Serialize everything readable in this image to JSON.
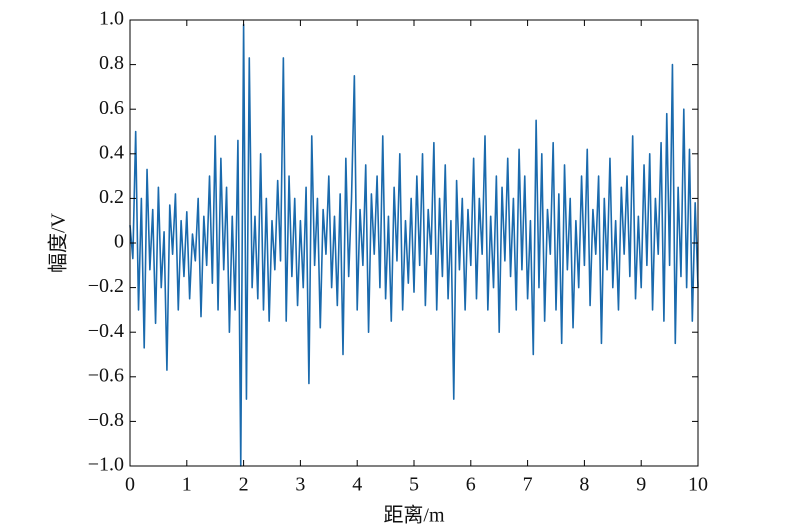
{
  "chart_data": {
    "type": "line",
    "xlabel": "距离/m",
    "ylabel": "幅度/V",
    "x": [
      0,
      0.05,
      0.1,
      0.15,
      0.2,
      0.25,
      0.3,
      0.35,
      0.4,
      0.45,
      0.5,
      0.55,
      0.6,
      0.65,
      0.7,
      0.75,
      0.8,
      0.85,
      0.9,
      0.95,
      1,
      1.05,
      1.1,
      1.15,
      1.2,
      1.25,
      1.3,
      1.35,
      1.4,
      1.45,
      1.5,
      1.55,
      1.6,
      1.65,
      1.7,
      1.75,
      1.8,
      1.85,
      1.9,
      1.95,
      2,
      2.05,
      2.1,
      2.15,
      2.2,
      2.25,
      2.3,
      2.35,
      2.4,
      2.45,
      2.5,
      2.55,
      2.6,
      2.65,
      2.7,
      2.75,
      2.8,
      2.85,
      2.9,
      2.95,
      3,
      3.05,
      3.1,
      3.15,
      3.2,
      3.25,
      3.3,
      3.35,
      3.4,
      3.45,
      3.5,
      3.55,
      3.6,
      3.65,
      3.7,
      3.75,
      3.8,
      3.85,
      3.9,
      3.95,
      4,
      4.05,
      4.1,
      4.15,
      4.2,
      4.25,
      4.3,
      4.35,
      4.4,
      4.45,
      4.5,
      4.55,
      4.6,
      4.65,
      4.7,
      4.75,
      4.8,
      4.85,
      4.9,
      4.95,
      5,
      5.05,
      5.1,
      5.15,
      5.2,
      5.25,
      5.3,
      5.35,
      5.4,
      5.45,
      5.5,
      5.55,
      5.6,
      5.65,
      5.7,
      5.75,
      5.8,
      5.85,
      5.9,
      5.95,
      6,
      6.05,
      6.1,
      6.15,
      6.2,
      6.25,
      6.3,
      6.35,
      6.4,
      6.45,
      6.5,
      6.55,
      6.6,
      6.65,
      6.7,
      6.75,
      6.8,
      6.85,
      6.9,
      6.95,
      7,
      7.05,
      7.1,
      7.15,
      7.2,
      7.25,
      7.3,
      7.35,
      7.4,
      7.45,
      7.5,
      7.55,
      7.6,
      7.65,
      7.7,
      7.75,
      7.8,
      7.85,
      7.9,
      7.95,
      8,
      8.05,
      8.1,
      8.15,
      8.2,
      8.25,
      8.3,
      8.35,
      8.4,
      8.45,
      8.5,
      8.55,
      8.6,
      8.65,
      8.7,
      8.75,
      8.8,
      8.85,
      8.9,
      8.95,
      9,
      9.05,
      9.1,
      9.15,
      9.2,
      9.25,
      9.3,
      9.35,
      9.4,
      9.45,
      9.5,
      9.55,
      9.6,
      9.65,
      9.7,
      9.75,
      9.8,
      9.85,
      9.9,
      9.95,
      10
    ],
    "series": [
      {
        "color": "#1a6aad",
        "values": [
          0.08,
          -0.07,
          0.5,
          -0.3,
          0.2,
          -0.47,
          0.33,
          -0.12,
          0.15,
          -0.36,
          0.25,
          -0.2,
          0.05,
          -0.57,
          0.17,
          -0.05,
          0.22,
          -0.3,
          0.1,
          -0.15,
          0.14,
          -0.25,
          0.04,
          -0.08,
          0.2,
          -0.33,
          0.12,
          -0.1,
          0.3,
          -0.18,
          0.48,
          -0.3,
          0.38,
          -0.12,
          0.25,
          -0.4,
          0.12,
          -0.3,
          0.46,
          -1.0,
          0.98,
          -0.7,
          0.83,
          -0.2,
          0.12,
          -0.25,
          0.4,
          -0.3,
          0.2,
          -0.35,
          0.1,
          -0.12,
          0.28,
          -0.08,
          0.83,
          -0.35,
          0.3,
          -0.15,
          0.2,
          -0.28,
          0.1,
          -0.2,
          0.25,
          -0.63,
          0.48,
          -0.1,
          0.2,
          -0.38,
          0.15,
          -0.05,
          0.3,
          -0.2,
          0.12,
          -0.28,
          0.22,
          -0.5,
          0.38,
          -0.15,
          0.2,
          0.75,
          -0.3,
          0.15,
          -0.1,
          0.35,
          -0.4,
          0.22,
          -0.05,
          0.3,
          -0.2,
          0.48,
          -0.25,
          0.12,
          -0.35,
          0.25,
          -0.08,
          0.4,
          -0.3,
          0.1,
          -0.18,
          0.2,
          -0.22,
          0.3,
          -0.1,
          0.4,
          -0.28,
          0.15,
          -0.05,
          0.45,
          -0.3,
          0.2,
          -0.15,
          0.35,
          -0.25,
          0.1,
          -0.7,
          0.28,
          -0.12,
          0.2,
          -0.3,
          0.15,
          -0.1,
          0.38,
          -0.25,
          0.2,
          -0.05,
          0.48,
          -0.3,
          0.12,
          -0.2,
          0.3,
          -0.4,
          0.25,
          -0.08,
          0.38,
          -0.15,
          0.2,
          -0.3,
          0.42,
          -0.12,
          0.3,
          -0.25,
          0.1,
          -0.5,
          0.55,
          -0.2,
          0.4,
          -0.35,
          0.15,
          -0.05,
          0.45,
          -0.3,
          0.22,
          -0.45,
          0.35,
          -0.12,
          0.2,
          -0.38,
          0.1,
          -0.2,
          0.3,
          -0.1,
          0.42,
          -0.28,
          0.15,
          -0.05,
          0.3,
          -0.45,
          0.2,
          -0.12,
          0.38,
          -0.2,
          0.1,
          -0.3,
          0.25,
          -0.05,
          0.3,
          -0.15,
          0.48,
          -0.25,
          0.12,
          -0.2,
          0.35,
          -0.1,
          0.4,
          -0.3,
          0.2,
          -0.05,
          0.45,
          -0.35,
          0.58,
          -0.1,
          0.8,
          -0.45,
          0.25,
          -0.15,
          0.6,
          -0.2,
          0.42,
          -0.35,
          0.18,
          -0.2
        ]
      }
    ],
    "xlim": [
      0,
      10
    ],
    "xticks": [
      0,
      1,
      2,
      3,
      4,
      5,
      6,
      7,
      8,
      9,
      10
    ],
    "ylim": [
      -1,
      1
    ],
    "yticks": [
      {
        "value": -1,
        "label": "−1.0"
      },
      {
        "value": -0.8,
        "label": "−0.8"
      },
      {
        "value": -0.6,
        "label": "−0.6"
      },
      {
        "value": -0.4,
        "label": "−0.4"
      },
      {
        "value": -0.2,
        "label": "−0.2"
      },
      0,
      0.2,
      0.4,
      0.6,
      0.8,
      {
        "value": 1,
        "label": "1.0"
      }
    ]
  }
}
